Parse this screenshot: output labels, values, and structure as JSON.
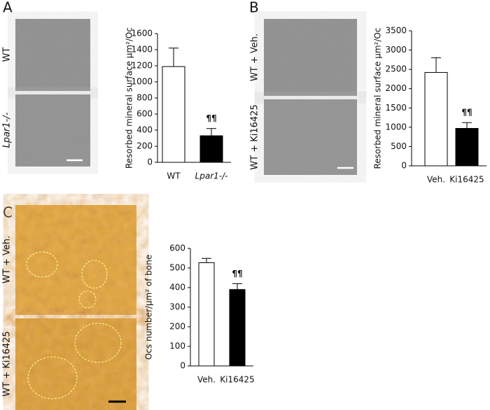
{
  "figure": {
    "panel_labels": [
      "A",
      "B",
      "C"
    ],
    "image_labels": [
      [
        "WT",
        "Lpar1-/-"
      ],
      [
        "WT + Veh.",
        "WT + Ki16425"
      ],
      [
        "WT + Veh.",
        "WT + Ki16425"
      ]
    ]
  },
  "chart_data": [
    {
      "type": "bar",
      "y_label": "Resorbed mineral surface µm²/Oc",
      "categories": [
        "WT",
        "Lpar1-/-"
      ],
      "values": [
        1190,
        330
      ],
      "errors": [
        230,
        90
      ],
      "colors": [
        "#ffffff",
        "#000000"
      ],
      "annotation": "¶¶",
      "ylim": [
        0,
        1600
      ],
      "yticks": [
        0,
        200,
        400,
        600,
        800,
        1000,
        1200,
        1400,
        1600
      ]
    },
    {
      "type": "bar",
      "y_label": "Resorbed mineral surface µm²/Oc",
      "categories": [
        "Veh.",
        "Ki16425"
      ],
      "values": [
        2420,
        970
      ],
      "errors": [
        380,
        150
      ],
      "colors": [
        "#ffffff",
        "#000000"
      ],
      "annotation": "¶¶",
      "ylim": [
        0,
        3500
      ],
      "yticks": [
        0,
        500,
        1000,
        1500,
        2000,
        2500,
        3000,
        3500
      ]
    },
    {
      "type": "bar",
      "y_label": "Ocs number/µm² of bone",
      "categories": [
        "Veh.",
        "Ki16425"
      ],
      "values": [
        527,
        390
      ],
      "errors": [
        22,
        30
      ],
      "colors": [
        "#ffffff",
        "#000000"
      ],
      "annotation": "¶¶",
      "ylim": [
        0,
        600
      ],
      "yticks": [
        0,
        100,
        200,
        300,
        400,
        500,
        600
      ]
    }
  ]
}
